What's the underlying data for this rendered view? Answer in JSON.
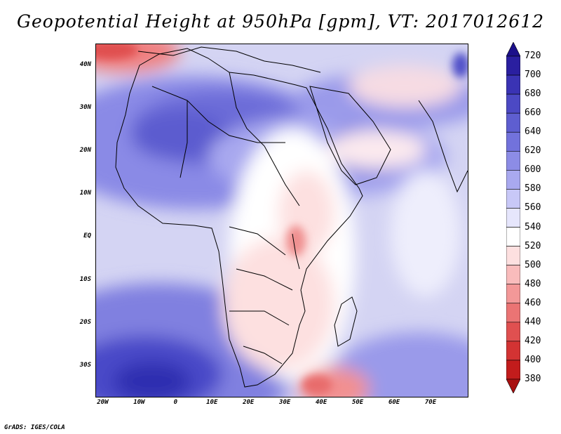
{
  "title": "Geopotential Height at 950hPa [gpm], VT: 2017012612",
  "credit": "GrADS: IGES/COLA",
  "map": {
    "variable": "Geopotential Height",
    "level": "950hPa",
    "units": "gpm",
    "valid_time": "2017012612",
    "lon_range": [
      -22,
      80
    ],
    "lat_range": [
      -37,
      45
    ],
    "lat_ticks": [
      {
        "label": "40N",
        "value": 40
      },
      {
        "label": "30N",
        "value": 30
      },
      {
        "label": "20N",
        "value": 20
      },
      {
        "label": "10N",
        "value": 10
      },
      {
        "label": "EQ",
        "value": 0
      },
      {
        "label": "10S",
        "value": -10
      },
      {
        "label": "20S",
        "value": -20
      },
      {
        "label": "30S",
        "value": -30
      }
    ],
    "lon_ticks": [
      {
        "label": "20W",
        "value": -20
      },
      {
        "label": "10W",
        "value": -10
      },
      {
        "label": "0",
        "value": 0
      },
      {
        "label": "10E",
        "value": 10
      },
      {
        "label": "20E",
        "value": 20
      },
      {
        "label": "30E",
        "value": 30
      },
      {
        "label": "40E",
        "value": 40
      },
      {
        "label": "50E",
        "value": 50
      },
      {
        "label": "60E",
        "value": 60
      },
      {
        "label": "70E",
        "value": 70
      }
    ]
  },
  "colorbar": {
    "levels": [
      720,
      700,
      680,
      660,
      640,
      620,
      600,
      580,
      560,
      540,
      520,
      500,
      480,
      460,
      440,
      420,
      400,
      380
    ],
    "colors": [
      "#1c108a",
      "#2a1fa0",
      "#3a33b4",
      "#4c49c4",
      "#5e5ed0",
      "#7272dc",
      "#8c8ce6",
      "#a9a9ef",
      "#c8c8f7",
      "#e6e6fc",
      "#ffffff",
      "#fde0e0",
      "#f9bcbc",
      "#f39898",
      "#eb7474",
      "#e05050",
      "#d33333",
      "#c21c1c",
      "#a81010"
    ]
  }
}
